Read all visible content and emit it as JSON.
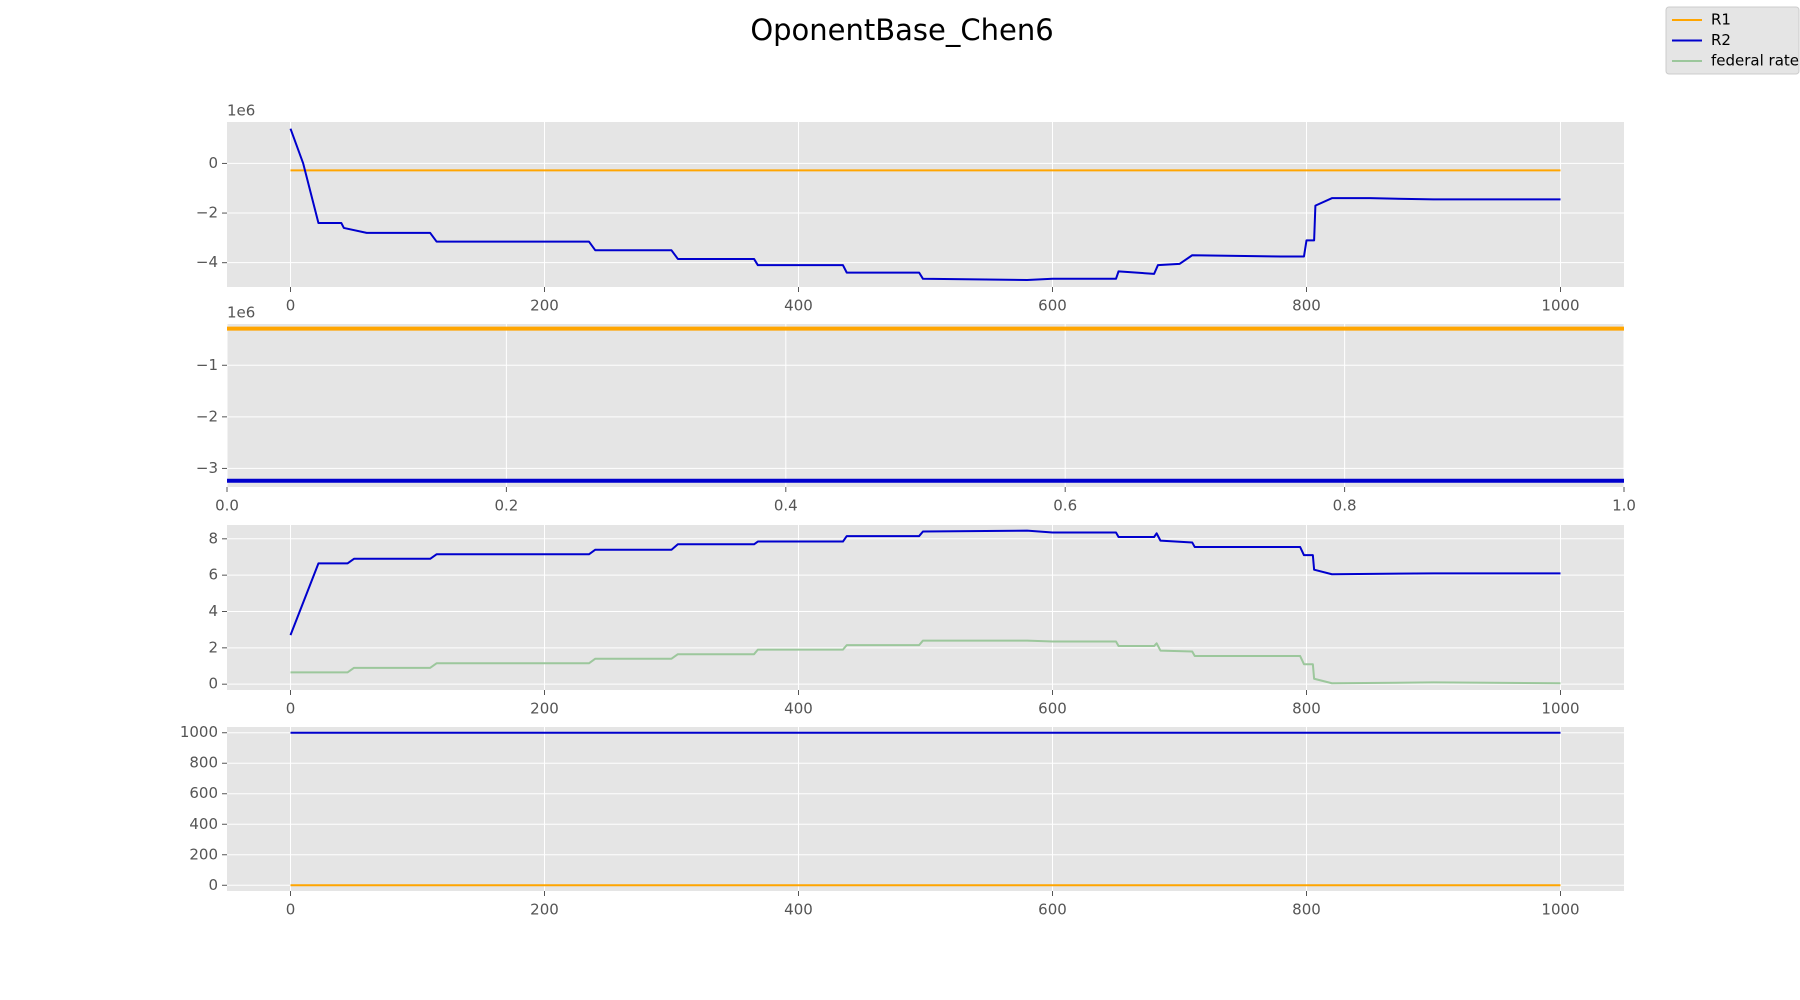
{
  "title": "OponentBase_Chen6",
  "legend_loc": "upper right",
  "chart_data": [
    {
      "type": "line",
      "offset_label": "1e6",
      "grid": true,
      "xlim": [
        -50,
        1050
      ],
      "ylim": [
        -4.98,
        1.67
      ],
      "xticks": [
        0,
        200,
        400,
        600,
        800,
        1000
      ],
      "yticks": [
        0,
        {
          "value": -2,
          "label": "−2"
        },
        {
          "value": -4,
          "label": "−4"
        }
      ],
      "series": [
        {
          "name": "R1",
          "color": "#ffa500",
          "x": [
            0,
            1000
          ],
          "values": [
            -0.28,
            -0.28
          ]
        },
        {
          "name": "R2",
          "color": "#0000cd",
          "x": [
            0,
            10,
            22,
            40,
            42,
            60,
            110,
            115,
            235,
            240,
            300,
            305,
            365,
            368,
            435,
            438,
            495,
            498,
            580,
            600,
            650,
            652,
            680,
            683,
            700,
            710,
            780,
            798,
            800,
            806,
            807,
            820,
            850,
            900,
            1000
          ],
          "values": [
            1.4,
            0,
            -2.4,
            -2.4,
            -2.6,
            -2.8,
            -2.8,
            -3.15,
            -3.15,
            -3.5,
            -3.5,
            -3.85,
            -3.85,
            -4.1,
            -4.1,
            -4.4,
            -4.4,
            -4.65,
            -4.7,
            -4.65,
            -4.65,
            -4.35,
            -4.45,
            -4.1,
            -4.05,
            -3.7,
            -3.75,
            -3.75,
            -3.1,
            -3.1,
            -1.7,
            -1.4,
            -1.4,
            -1.45,
            -1.45
          ]
        }
      ]
    },
    {
      "type": "line",
      "offset_label": "1e6",
      "grid": true,
      "xlim": [
        0,
        1
      ],
      "ylim": [
        -3.36,
        -0.2
      ],
      "xticks": [
        {
          "value": 0,
          "label": "0.0"
        },
        0.2,
        0.4,
        0.6,
        0.8,
        {
          "value": 1,
          "label": "1.0"
        }
      ],
      "yticks": [
        {
          "value": -1,
          "label": "−1"
        },
        {
          "value": -2,
          "label": "−2"
        },
        {
          "value": -3,
          "label": "−3"
        }
      ],
      "series": [
        {
          "name": "R1",
          "color": "#ffa500",
          "linewidth": 4,
          "x": [
            0,
            1
          ],
          "values": [
            -0.29,
            -0.29
          ]
        },
        {
          "name": "R2",
          "color": "#0000cd",
          "linewidth": 4,
          "x": [
            0,
            1
          ],
          "values": [
            -3.24,
            -3.24
          ]
        }
      ]
    },
    {
      "type": "line",
      "grid": true,
      "xlim": [
        -50,
        1050
      ],
      "ylim": [
        -0.32,
        8.76
      ],
      "xticks": [
        0,
        200,
        400,
        600,
        800,
        1000
      ],
      "yticks": [
        0,
        2,
        4,
        6,
        8
      ],
      "series": [
        {
          "name": "R2",
          "color": "#0000cd",
          "x": [
            0,
            22,
            45,
            50,
            110,
            115,
            235,
            240,
            300,
            305,
            365,
            368,
            435,
            438,
            495,
            498,
            580,
            600,
            650,
            652,
            680,
            682,
            685,
            710,
            712,
            795,
            798,
            805,
            806,
            820,
            900,
            1000
          ],
          "values": [
            2.7,
            6.65,
            6.65,
            6.9,
            6.9,
            7.15,
            7.15,
            7.4,
            7.4,
            7.7,
            7.7,
            7.85,
            7.85,
            8.15,
            8.15,
            8.4,
            8.45,
            8.35,
            8.35,
            8.1,
            8.1,
            8.3,
            7.9,
            7.8,
            7.55,
            7.55,
            7.1,
            7.1,
            6.3,
            6.05,
            6.1,
            6.1
          ]
        },
        {
          "name": "federal rate",
          "color": "#9cc79c",
          "x": [
            0,
            45,
            50,
            110,
            115,
            235,
            240,
            300,
            305,
            365,
            368,
            435,
            438,
            495,
            498,
            580,
            600,
            650,
            652,
            680,
            682,
            685,
            710,
            712,
            795,
            798,
            805,
            806,
            820,
            900,
            1000
          ],
          "values": [
            0.65,
            0.65,
            0.9,
            0.9,
            1.15,
            1.15,
            1.4,
            1.4,
            1.65,
            1.65,
            1.9,
            1.9,
            2.15,
            2.15,
            2.4,
            2.4,
            2.35,
            2.35,
            2.1,
            2.1,
            2.25,
            1.85,
            1.8,
            1.55,
            1.55,
            1.1,
            1.1,
            0.3,
            0.05,
            0.1,
            0.05
          ]
        }
      ]
    },
    {
      "type": "line",
      "grid": true,
      "xlim": [
        -50,
        1050
      ],
      "ylim": [
        -37.6,
        1037.6
      ],
      "xticks": [
        0,
        200,
        400,
        600,
        800,
        1000
      ],
      "yticks": [
        0,
        200,
        400,
        600,
        800,
        1000
      ],
      "series": [
        {
          "name": "R2",
          "color": "#0000cd",
          "x": [
            0,
            1000
          ],
          "values": [
            1000,
            1000
          ]
        },
        {
          "name": "R1",
          "color": "#ffa500",
          "x": [
            0,
            1000
          ],
          "values": [
            0,
            0
          ]
        }
      ]
    }
  ]
}
